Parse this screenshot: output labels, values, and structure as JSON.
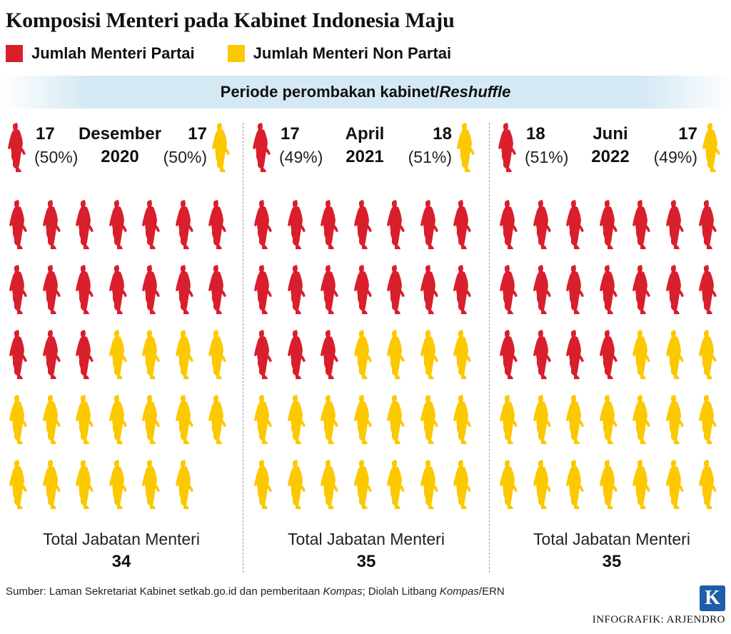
{
  "title": "Komposisi Menteri pada Kabinet Indonesia Maju",
  "legend": [
    {
      "label": "Jumlah Menteri Partai",
      "color": "#d81f2b"
    },
    {
      "label": "Jumlah Menteri Non Partai",
      "color": "#fcc800"
    }
  ],
  "banner": {
    "text": "Periode perombakan kabinet/",
    "emphasis": "Reshuffle"
  },
  "chart_data": {
    "type": "pictogram",
    "title": "Komposisi Menteri pada Kabinet Indonesia Maju",
    "unit_label": "1 figure = 1 menteri",
    "series": [
      {
        "name": "Jumlah Menteri Partai",
        "color": "#d81f2b"
      },
      {
        "name": "Jumlah Menteri Non Partai",
        "color": "#fcc800"
      }
    ],
    "periods": [
      {
        "month": "Desember",
        "year": "2020",
        "partai": 17,
        "partai_pct": "(50%)",
        "non_partai": 17,
        "non_partai_pct": "(50%)",
        "total_label": "Total Jabatan Menteri",
        "total": 34
      },
      {
        "month": "April",
        "year": "2021",
        "partai": 17,
        "partai_pct": "(49%)",
        "non_partai": 18,
        "non_partai_pct": "(51%)",
        "total_label": "Total Jabatan Menteri",
        "total": 35
      },
      {
        "month": "Juni",
        "year": "2022",
        "partai": 18,
        "partai_pct": "(51%)",
        "non_partai": 17,
        "non_partai_pct": "(49%)",
        "total_label": "Total Jabatan Menteri",
        "total": 35
      }
    ]
  },
  "footer": {
    "source_prefix": "Sumber: Laman Sekretariat Kabinet setkab.go.id dan pemberitaan ",
    "source_em1": "Kompas",
    "source_mid": "; Diolah Litbang ",
    "source_em2": "Kompas",
    "source_suffix": "/ERN",
    "logo": "K",
    "credit": "INFOGRAFIK: ARJENDRO"
  }
}
